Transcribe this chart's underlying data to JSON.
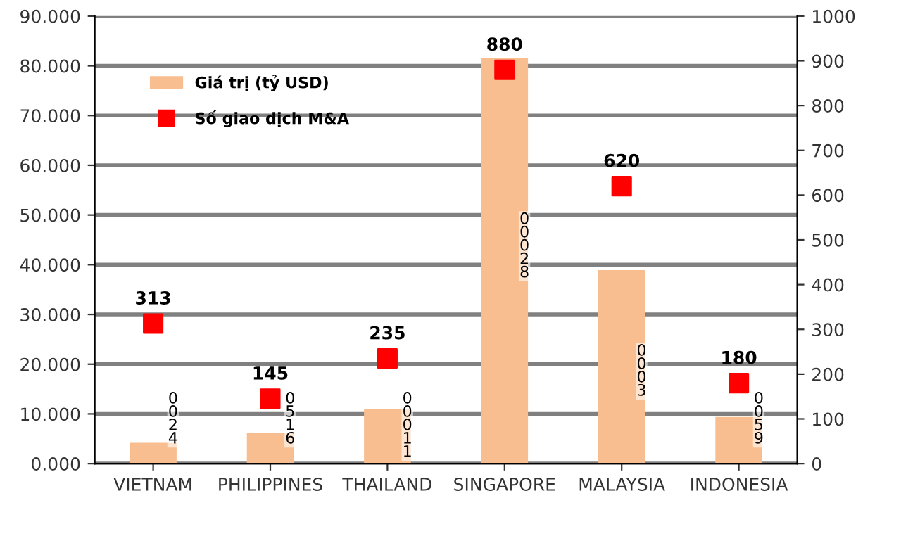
{
  "chart_data": {
    "type": "bar",
    "categories": [
      "VIETNAM",
      "PHILIPPINES",
      "THAILAND",
      "SINGAPORE",
      "MALAYSIA",
      "INDONESIA"
    ],
    "series": [
      {
        "name": "Giá trị (tỷ USD)",
        "color": "#f9be8f",
        "values": [
          4.2,
          6.2,
          11.0,
          81.6,
          38.9,
          9.4
        ]
      },
      {
        "name": "Số giao dịch M&A",
        "type": "scatter",
        "axis": "y2",
        "color": "#ff0000",
        "marker": "square",
        "values": [
          313,
          145,
          235,
          880,
          620,
          180
        ],
        "data_labels": true
      }
    ],
    "ylim": [
      0,
      90
    ],
    "yticks": [
      {
        "value": 0,
        "label": "0.000"
      },
      {
        "value": 10,
        "label": "10.000"
      },
      {
        "value": 20,
        "label": "20.000"
      },
      {
        "value": 30,
        "label": "30.000"
      },
      {
        "value": 40,
        "label": "40.000"
      },
      {
        "value": 50,
        "label": "50.000"
      },
      {
        "value": 60,
        "label": "60.000"
      },
      {
        "value": 70,
        "label": "70.000"
      },
      {
        "value": 80,
        "label": "80.000"
      },
      {
        "value": 90,
        "label": "90.000"
      }
    ],
    "y2lim": [
      0,
      1000
    ],
    "y2ticks": [
      0,
      100,
      200,
      300,
      400,
      500,
      600,
      700,
      800,
      900,
      1000
    ],
    "annotations": [
      "0024",
      "0516",
      "00011",
      "00028",
      "0003",
      "0059"
    ],
    "grid": "y",
    "legend": "top left"
  }
}
